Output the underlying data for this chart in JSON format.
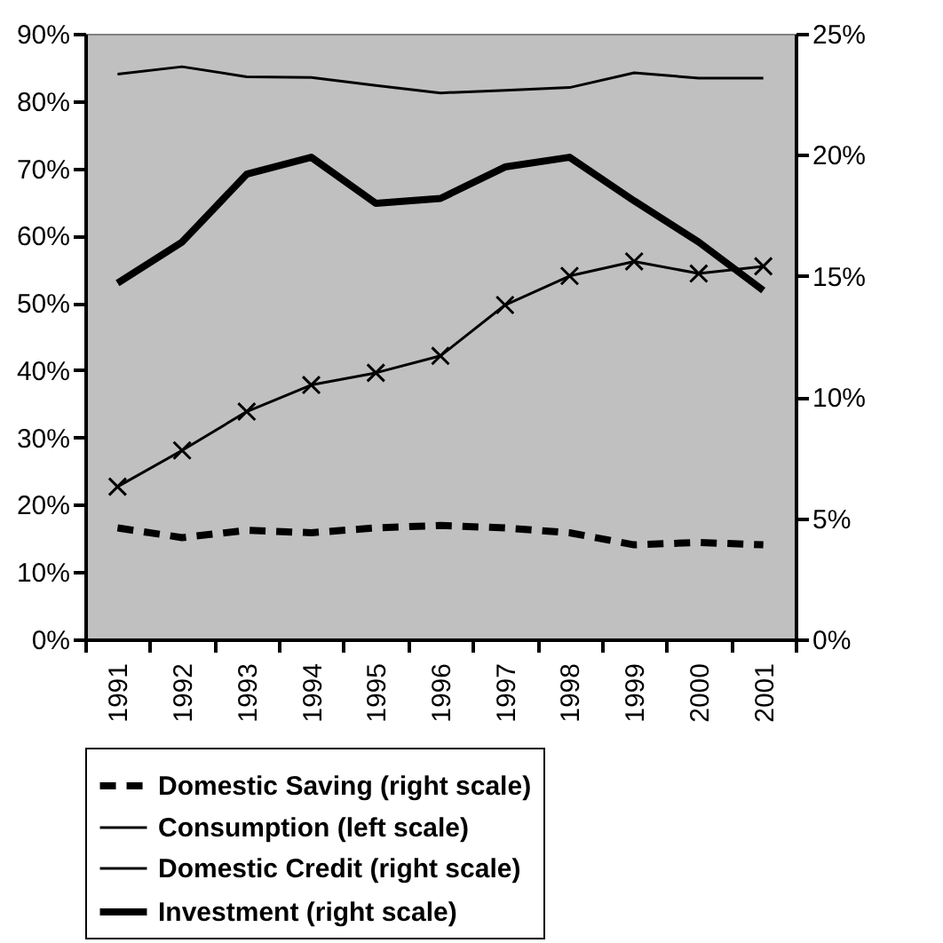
{
  "chart_data": {
    "type": "line",
    "categories": [
      "1991",
      "1992",
      "1993",
      "1994",
      "1995",
      "1996",
      "1997",
      "1998",
      "1999",
      "2000",
      "2001"
    ],
    "ylim": [
      0,
      90
    ],
    "yticks": [
      {
        "value": 0,
        "label": "0%"
      },
      {
        "value": 10,
        "label": "10%"
      },
      {
        "value": 20,
        "label": "20%"
      },
      {
        "value": 30,
        "label": "30%"
      },
      {
        "value": 40,
        "label": "40%"
      },
      {
        "value": 50,
        "label": "50%"
      },
      {
        "value": 60,
        "label": "60%"
      },
      {
        "value": 70,
        "label": "70%"
      },
      {
        "value": 80,
        "label": "80%"
      },
      {
        "value": 90,
        "label": "90%"
      }
    ],
    "y2lim": [
      0,
      25
    ],
    "y2ticks": [
      {
        "value": 0,
        "label": "0%"
      },
      {
        "value": 5,
        "label": "5%"
      },
      {
        "value": 10,
        "label": "10%"
      },
      {
        "value": 15,
        "label": "15%"
      },
      {
        "value": 20,
        "label": "20%"
      },
      {
        "value": 25,
        "label": "25%"
      }
    ],
    "grid": false,
    "legend": "bottom",
    "series": [
      {
        "name": "Domestic Saving (right scale)",
        "color": "#000000",
        "axis": "y2",
        "line_style": "dashed",
        "values": [
          4.6,
          4.2,
          4.5,
          4.4,
          4.6,
          4.7,
          4.6,
          4.4,
          3.9,
          4.0,
          3.9
        ]
      },
      {
        "name": "Consumption (left scale)",
        "color": "#000000",
        "axis": "y",
        "values": [
          84.0,
          85.1,
          83.6,
          83.5,
          82.3,
          81.2,
          81.6,
          82.0,
          84.2,
          83.4,
          83.4
        ]
      },
      {
        "name": "Domestic Credit (right scale)",
        "color": "#000000",
        "axis": "y2",
        "marker": "cross",
        "values": [
          6.3,
          7.8,
          9.4,
          10.5,
          11.0,
          11.7,
          13.8,
          15.0,
          15.6,
          15.1,
          15.4
        ]
      },
      {
        "name": "Investment (right scale)",
        "color": "#000000",
        "axis": "y2",
        "values": [
          14.7,
          16.4,
          19.2,
          19.9,
          18.0,
          18.2,
          19.5,
          19.9,
          18.1,
          16.4,
          14.4
        ]
      }
    ]
  }
}
